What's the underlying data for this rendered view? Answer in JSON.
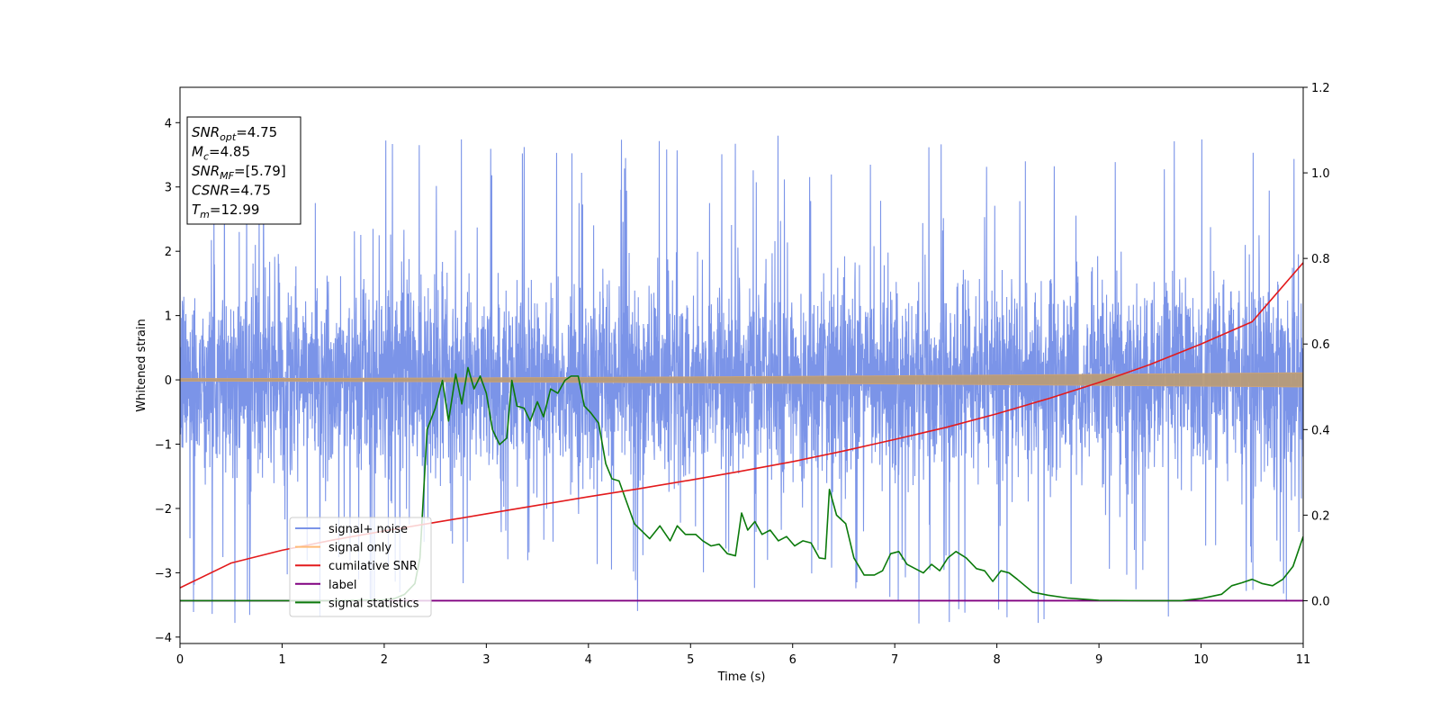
{
  "chart_data": {
    "type": "line",
    "xlabel": "Time (s)",
    "ylabel": "Whitened strain",
    "xlim": [
      0,
      11
    ],
    "ylim": [
      -4.1,
      4.55
    ],
    "y2lim": [
      -0.1,
      1.2
    ],
    "x_ticks": [
      0,
      1,
      2,
      3,
      4,
      5,
      6,
      7,
      8,
      9,
      10,
      11
    ],
    "x_tick_labels": [
      "0",
      "1",
      "2",
      "3",
      "4",
      "5",
      "6",
      "7",
      "8",
      "9",
      "10",
      "11"
    ],
    "y_ticks": [
      4,
      3,
      2,
      1,
      0,
      -1,
      -2,
      -3,
      -4
    ],
    "y_tick_labels": [
      "4",
      "3",
      "2",
      "1",
      "0",
      "−1",
      "−2",
      "−3",
      "−4"
    ],
    "y2_ticks": [
      1.2,
      1.0,
      0.8,
      0.6,
      0.4,
      0.2,
      0.0
    ],
    "y2_tick_labels": [
      "1.2",
      "1.0",
      "0.8",
      "0.6",
      "0.4",
      "0.2",
      "0.0"
    ],
    "grid": false,
    "legend_position": "lower-left",
    "series": [
      {
        "name": "signal+ noise",
        "color": "#7b94e8",
        "axis": "left",
        "kind": "noise",
        "band_sigma": 0.75,
        "band_max": 4.2,
        "n_samples": 4400
      },
      {
        "name": "signal only",
        "color": "#ffbb78",
        "axis": "left",
        "kind": "chirp",
        "amplitude_start": 0.02,
        "amplitude_end": 0.11
      },
      {
        "name": "cumilative SNR",
        "color": "#e31a1c",
        "axis": "right",
        "x": [
          0,
          0.5,
          1,
          1.5,
          2,
          2.5,
          3,
          3.5,
          4,
          4.5,
          5,
          5.5,
          6,
          6.5,
          7,
          7.5,
          8,
          8.5,
          9,
          9.5,
          10,
          10.5,
          11
        ],
        "y": [
          0.03,
          0.088,
          0.118,
          0.142,
          0.163,
          0.183,
          0.203,
          0.223,
          0.243,
          0.262,
          0.282,
          0.303,
          0.325,
          0.35,
          0.377,
          0.405,
          0.437,
          0.472,
          0.51,
          0.552,
          0.6,
          0.652,
          0.79
        ]
      },
      {
        "name": "label",
        "color": "#800080",
        "axis": "right",
        "x": [
          0,
          11
        ],
        "y": [
          0.0,
          0.0
        ]
      },
      {
        "name": "signal statistics",
        "color": "#0b7a0b",
        "axis": "right",
        "x": [
          0,
          0.5,
          1,
          1.5,
          2,
          2.1,
          2.2,
          2.3,
          2.35,
          2.42,
          2.5,
          2.57,
          2.63,
          2.7,
          2.76,
          2.82,
          2.88,
          2.94,
          3.0,
          3.06,
          3.13,
          3.2,
          3.25,
          3.3,
          3.37,
          3.43,
          3.5,
          3.56,
          3.63,
          3.7,
          3.77,
          3.83,
          3.9,
          3.96,
          4.02,
          4.1,
          4.17,
          4.23,
          4.3,
          4.45,
          4.6,
          4.7,
          4.8,
          4.87,
          4.95,
          5.05,
          5.12,
          5.2,
          5.28,
          5.36,
          5.44,
          5.5,
          5.56,
          5.63,
          5.7,
          5.78,
          5.86,
          5.94,
          6.02,
          6.1,
          6.18,
          6.26,
          6.32,
          6.36,
          6.43,
          6.52,
          6.6,
          6.7,
          6.8,
          6.88,
          6.96,
          7.04,
          7.12,
          7.2,
          7.28,
          7.36,
          7.44,
          7.52,
          7.6,
          7.7,
          7.8,
          7.88,
          7.96,
          8.04,
          8.12,
          8.2,
          8.35,
          8.5,
          8.7,
          9.0,
          9.5,
          9.8,
          10.0,
          10.2,
          10.3,
          10.4,
          10.5,
          10.6,
          10.7,
          10.8,
          10.9,
          11.0
        ],
        "y": [
          0.0,
          0.0,
          0.0,
          0.0,
          0.002,
          0.005,
          0.015,
          0.04,
          0.1,
          0.4,
          0.45,
          0.515,
          0.42,
          0.53,
          0.46,
          0.545,
          0.495,
          0.525,
          0.485,
          0.4,
          0.365,
          0.38,
          0.515,
          0.455,
          0.45,
          0.42,
          0.465,
          0.43,
          0.495,
          0.485,
          0.515,
          0.525,
          0.525,
          0.455,
          0.44,
          0.415,
          0.32,
          0.285,
          0.28,
          0.18,
          0.145,
          0.175,
          0.14,
          0.175,
          0.155,
          0.155,
          0.14,
          0.128,
          0.132,
          0.11,
          0.105,
          0.205,
          0.165,
          0.185,
          0.155,
          0.165,
          0.14,
          0.15,
          0.128,
          0.14,
          0.135,
          0.1,
          0.098,
          0.26,
          0.2,
          0.18,
          0.1,
          0.06,
          0.06,
          0.07,
          0.11,
          0.115,
          0.085,
          0.075,
          0.065,
          0.085,
          0.07,
          0.1,
          0.115,
          0.1,
          0.075,
          0.07,
          0.045,
          0.07,
          0.065,
          0.05,
          0.02,
          0.013,
          0.006,
          0.001,
          0.0,
          0.0,
          0.005,
          0.015,
          0.035,
          0.042,
          0.05,
          0.04,
          0.035,
          0.05,
          0.08,
          0.15
        ]
      }
    ],
    "annotation_box": {
      "lines": [
        {
          "sym": "SNR",
          "sub": "opt",
          "val": "=4.75"
        },
        {
          "sym": "M",
          "sub": "c",
          "val": "=4.85"
        },
        {
          "sym": "SNR",
          "sub": "MF",
          "val": "=[5.79]"
        },
        {
          "sym": "CSNR",
          "sub": "",
          "val": "=4.75"
        },
        {
          "sym": "T",
          "sub": "m",
          "val": "=12.99"
        }
      ]
    }
  }
}
